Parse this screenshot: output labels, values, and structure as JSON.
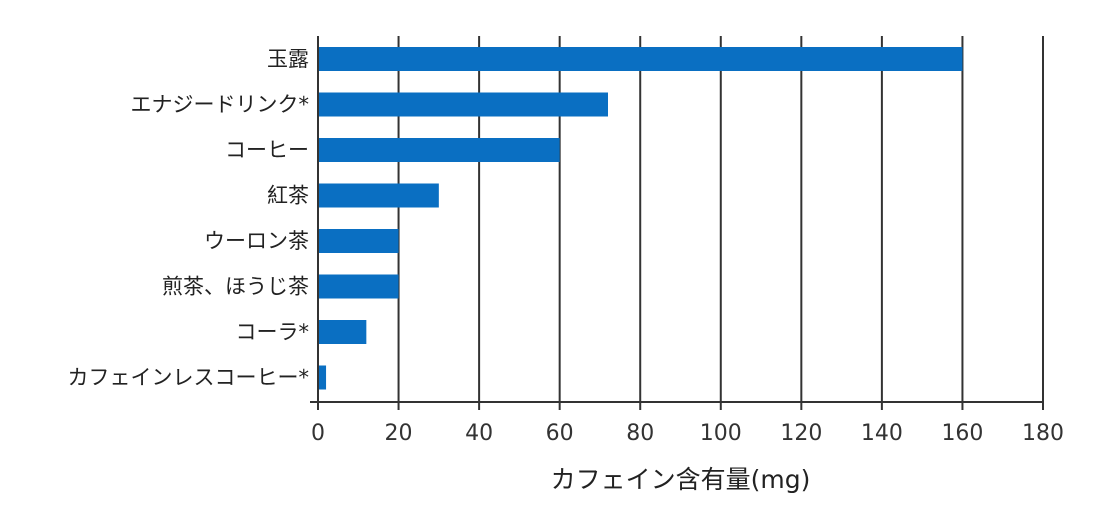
{
  "chart_data": {
    "type": "bar",
    "orientation": "horizontal",
    "categories": [
      "玉露",
      "エナジードリンク*",
      "コーヒー",
      "紅茶",
      "ウーロン茶",
      "煎茶、ほうじ茶",
      "コーラ*",
      "カフェインレスコーヒー*"
    ],
    "values": [
      160,
      72,
      60,
      30,
      20,
      20,
      12,
      2
    ],
    "title": "",
    "xlabel": "カフェイン含有量(mg)",
    "ylabel": "",
    "xlim": [
      0,
      180
    ],
    "xticks": [
      "0",
      "20",
      "40",
      "60",
      "80",
      "100",
      "120",
      "140",
      "160",
      "180"
    ],
    "grid": "vertical",
    "bar_color": "#0a6fc2"
  }
}
